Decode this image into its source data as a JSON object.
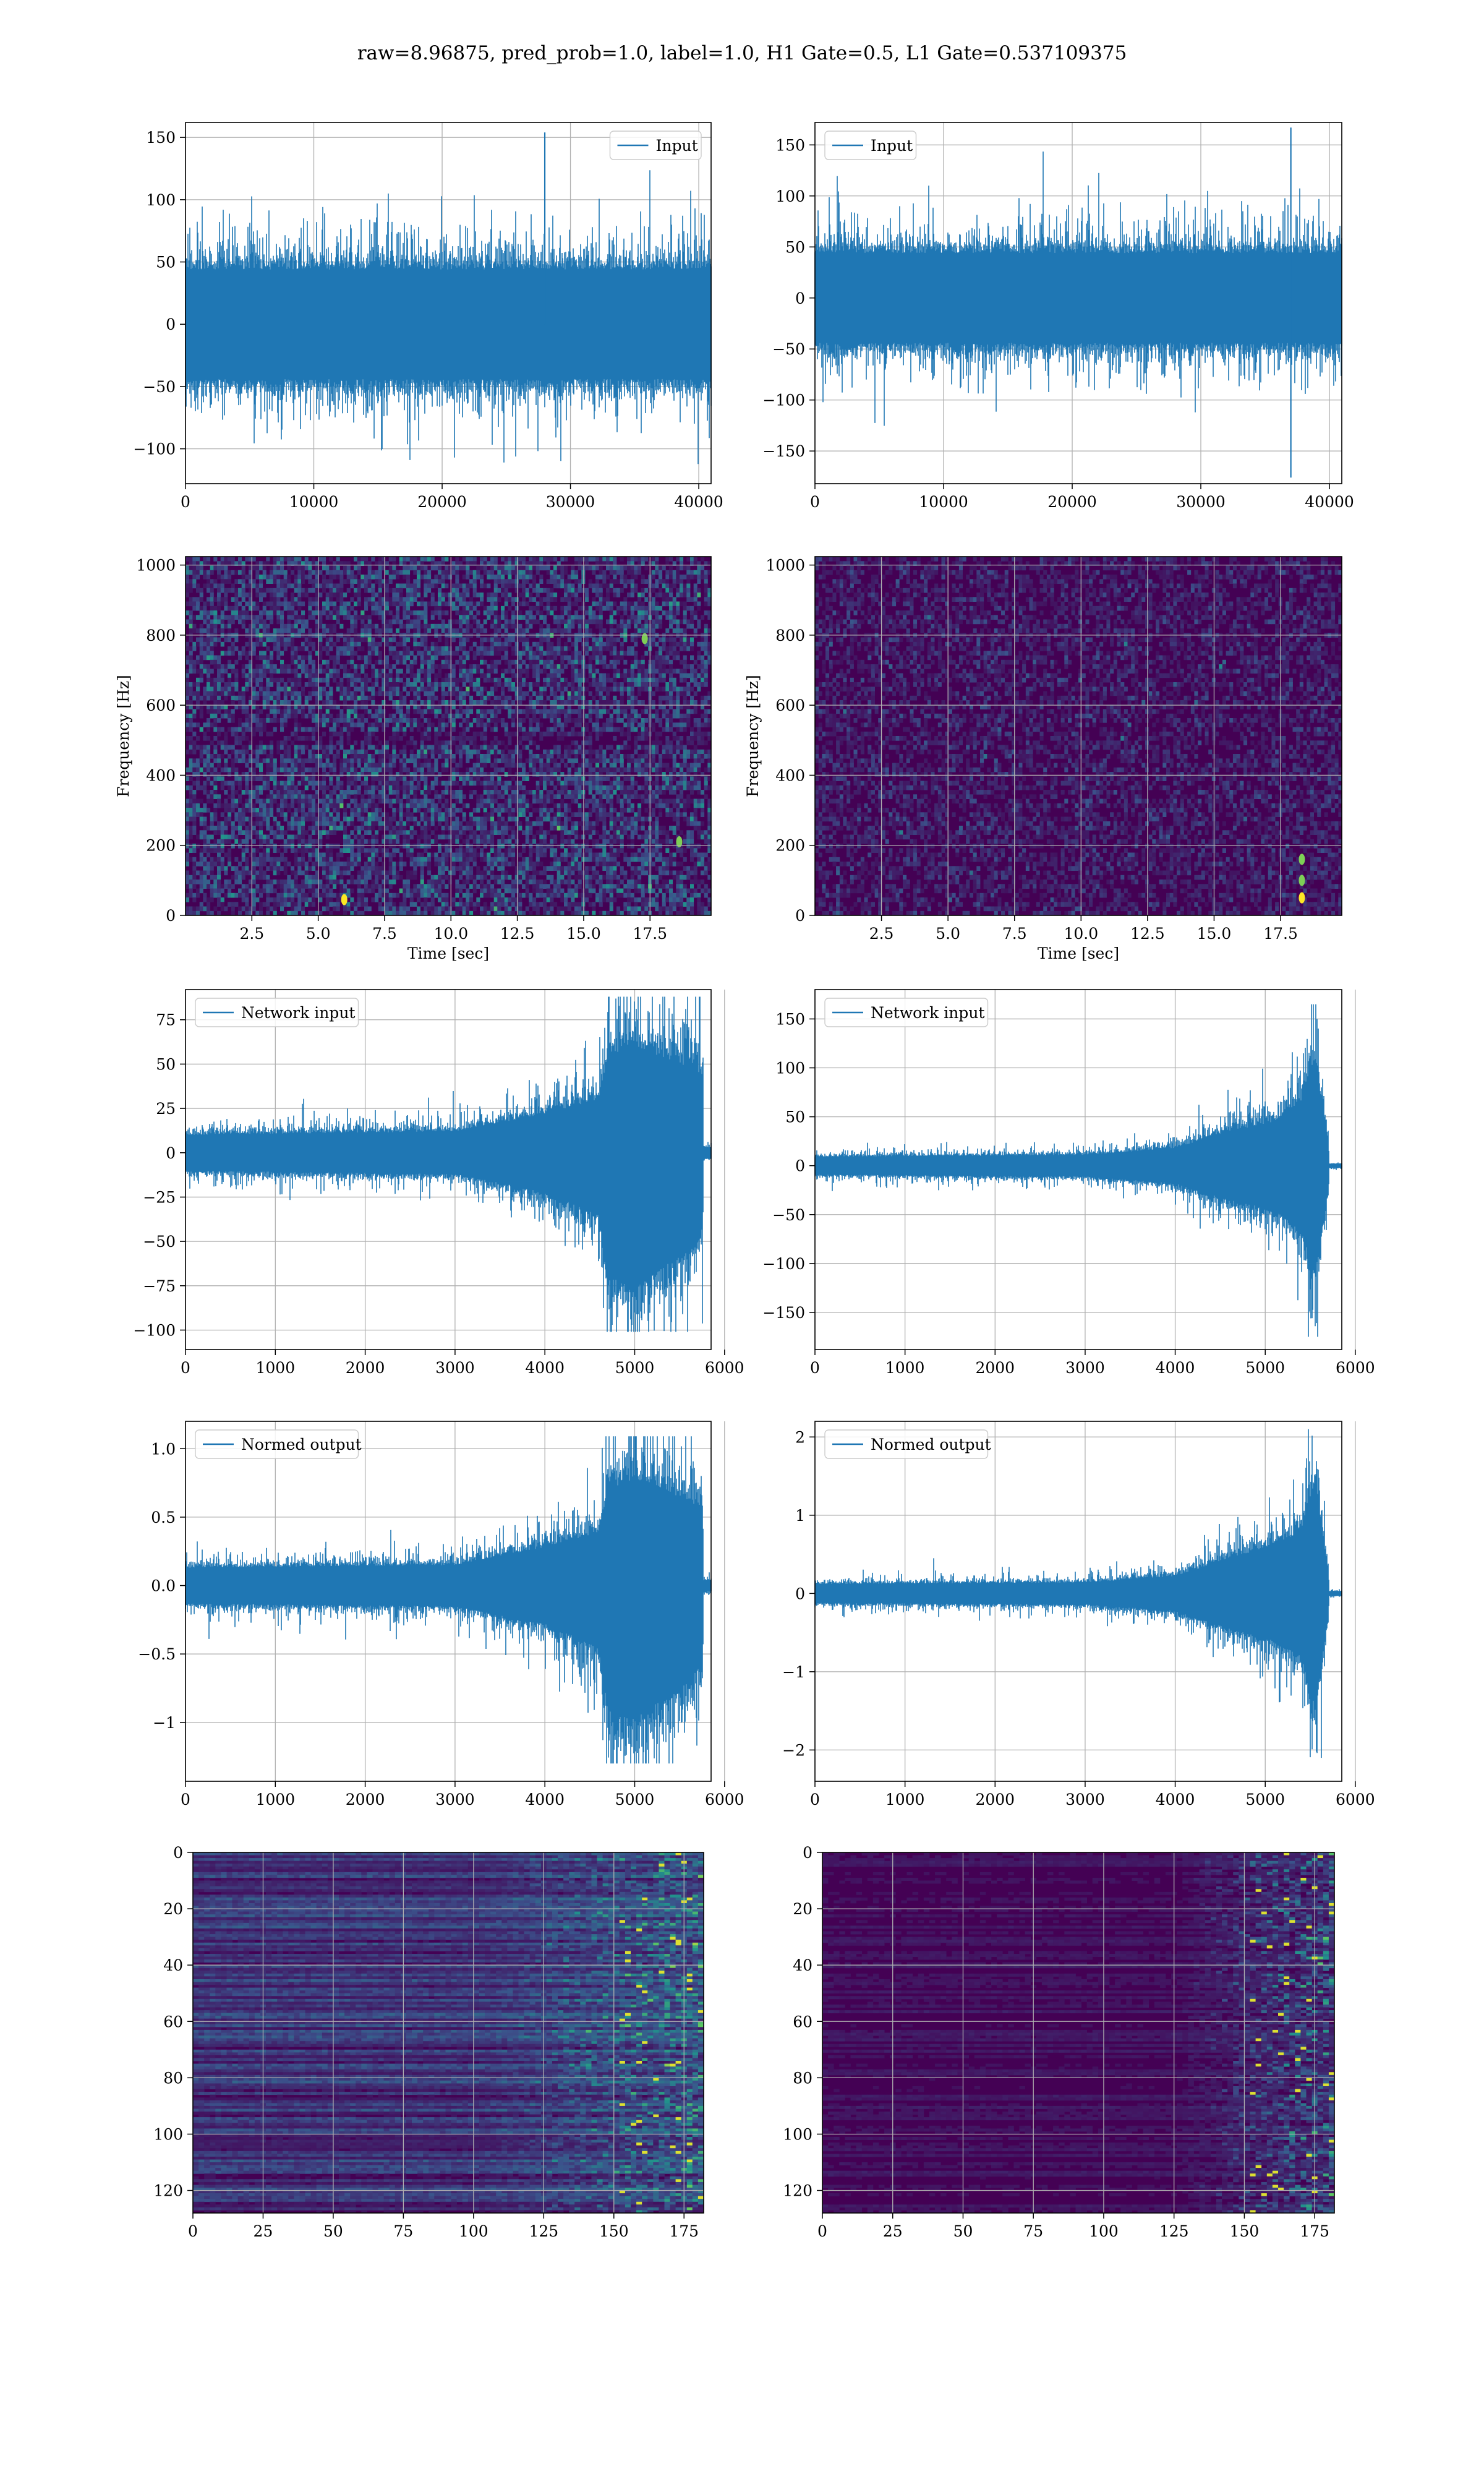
{
  "figure": {
    "title": "raw=8.96875, pred_prob=1.0, label=1.0, H1 Gate=0.5, L1 Gate=0.537109375",
    "line_color": "#1f77b4",
    "grid_color": "#b0b0b0"
  },
  "chart_data": [
    {
      "id": "h1-input",
      "type": "line",
      "series": [
        {
          "name": "Input"
        }
      ],
      "x_range": [
        0,
        40960
      ],
      "ylim": [
        -128,
        162
      ],
      "data_range": [
        -122,
        154
      ],
      "xticks": [
        0,
        10000,
        20000,
        30000,
        40000
      ],
      "yticks": [
        -100,
        -50,
        0,
        50,
        100,
        150
      ],
      "xlabel": "",
      "ylabel": "",
      "legend": "top-right",
      "grid": true,
      "peaks": [
        {
          "x": 28000,
          "y": 154
        }
      ],
      "envelope": [
        [
          0,
          44,
          -44
        ],
        [
          40960,
          44,
          -44
        ]
      ]
    },
    {
      "id": "l1-input",
      "type": "line",
      "series": [
        {
          "name": "Input"
        }
      ],
      "x_range": [
        0,
        40960
      ],
      "ylim": [
        -182,
        172
      ],
      "data_range": [
        -176,
        167
      ],
      "xticks": [
        0,
        10000,
        20000,
        30000,
        40000
      ],
      "yticks": [
        -150,
        -100,
        -50,
        0,
        50,
        100,
        150
      ],
      "xlabel": "",
      "ylabel": "",
      "legend": "top-left",
      "grid": true,
      "peaks": [
        {
          "x": 37000,
          "y": 167
        },
        {
          "x": 37000,
          "y": -176
        }
      ],
      "envelope": [
        [
          0,
          44,
          -44
        ],
        [
          40960,
          44,
          -44
        ]
      ]
    },
    {
      "id": "h1-spectrogram",
      "type": "heatmap",
      "x_range": [
        0,
        19.8
      ],
      "ylim": [
        0,
        1024
      ],
      "xticks": [
        2.5,
        5.0,
        7.5,
        10.0,
        12.5,
        15.0,
        17.5
      ],
      "yticks": [
        0,
        200,
        400,
        600,
        800,
        1000
      ],
      "xlabel": "Time [sec]",
      "ylabel": "Frequency [Hz]",
      "grid": true,
      "colormap": "viridis",
      "hot_spots": [
        {
          "x": 5.98,
          "y": 45
        },
        {
          "x": 18.6,
          "y": 210
        },
        {
          "x": 17.3,
          "y": 790
        }
      ]
    },
    {
      "id": "l1-spectrogram",
      "type": "heatmap",
      "x_range": [
        0,
        19.8
      ],
      "ylim": [
        0,
        1024
      ],
      "xticks": [
        2.5,
        5.0,
        7.5,
        10.0,
        12.5,
        15.0,
        17.5
      ],
      "yticks": [
        0,
        200,
        400,
        600,
        800,
        1000
      ],
      "xlabel": "Time [sec]",
      "ylabel": "Frequency [Hz]",
      "grid": true,
      "colormap": "viridis",
      "hot_spots": [
        {
          "x": 18.3,
          "y": 50
        },
        {
          "x": 18.3,
          "y": 100
        },
        {
          "x": 18.3,
          "y": 160
        }
      ]
    },
    {
      "id": "h1-network-input",
      "type": "line",
      "series": [
        {
          "name": "Network input"
        }
      ],
      "x_range": [
        0,
        5850
      ],
      "ylim": [
        -111,
        92
      ],
      "data_range": [
        -101,
        88
      ],
      "xticks": [
        0,
        1000,
        2000,
        3000,
        4000,
        5000,
        6000
      ],
      "yticks": [
        -100,
        -75,
        -50,
        -25,
        0,
        25,
        50,
        75
      ],
      "xlabel": "",
      "ylabel": "",
      "legend": "top-left",
      "grid": true,
      "envelope": [
        [
          0,
          10,
          -10
        ],
        [
          3000,
          12,
          -12
        ],
        [
          4000,
          22,
          -22
        ],
        [
          4600,
          30,
          -35
        ],
        [
          4700,
          55,
          -70
        ],
        [
          5000,
          60,
          -75
        ],
        [
          5600,
          48,
          -55
        ],
        [
          5760,
          42,
          -42
        ],
        [
          5762,
          3,
          -3
        ],
        [
          5850,
          3,
          -3
        ]
      ]
    },
    {
      "id": "l1-network-input",
      "type": "line",
      "series": [
        {
          "name": "Network input"
        }
      ],
      "x_range": [
        0,
        5850
      ],
      "ylim": [
        -188,
        180
      ],
      "data_range": [
        -175,
        165
      ],
      "xticks": [
        0,
        1000,
        2000,
        3000,
        4000,
        5000,
        6000
      ],
      "yticks": [
        -150,
        -100,
        -50,
        0,
        50,
        100,
        150
      ],
      "xlabel": "",
      "ylabel": "",
      "legend": "top-left",
      "grid": true,
      "envelope": [
        [
          0,
          9,
          -9
        ],
        [
          3000,
          11,
          -11
        ],
        [
          4000,
          18,
          -18
        ],
        [
          4600,
          35,
          -35
        ],
        [
          5100,
          45,
          -45
        ],
        [
          5400,
          65,
          -65
        ],
        [
          5550,
          110,
          -110
        ],
        [
          5700,
          25,
          -25
        ],
        [
          5710,
          2,
          -2
        ],
        [
          5850,
          2,
          -2
        ]
      ]
    },
    {
      "id": "h1-normed-output",
      "type": "line",
      "series": [
        {
          "name": "Normed output"
        }
      ],
      "x_range": [
        0,
        5850
      ],
      "ylim": [
        -1.43,
        1.2
      ],
      "data_range": [
        -1.3,
        1.09
      ],
      "xticks": [
        0,
        1000,
        2000,
        3000,
        4000,
        5000,
        6000
      ],
      "yticks": [
        -1.0,
        -0.5,
        0.0,
        0.5,
        1.0
      ],
      "xlabel": "",
      "ylabel": "",
      "legend": "top-left",
      "grid": true,
      "envelope": [
        [
          0,
          0.13,
          -0.13
        ],
        [
          3000,
          0.15,
          -0.15
        ],
        [
          4000,
          0.28,
          -0.28
        ],
        [
          4600,
          0.38,
          -0.45
        ],
        [
          4700,
          0.7,
          -0.9
        ],
        [
          5000,
          0.78,
          -0.95
        ],
        [
          5600,
          0.62,
          -0.7
        ],
        [
          5760,
          0.55,
          -0.55
        ],
        [
          5762,
          0.04,
          -0.04
        ],
        [
          5850,
          0.04,
          -0.04
        ]
      ]
    },
    {
      "id": "l1-normed-output",
      "type": "line",
      "series": [
        {
          "name": "Normed output"
        }
      ],
      "x_range": [
        0,
        5850
      ],
      "ylim": [
        -2.4,
        2.2
      ],
      "data_range": [
        -2.2,
        2.1
      ],
      "xticks": [
        0,
        1000,
        2000,
        3000,
        4000,
        5000,
        6000
      ],
      "yticks": [
        -2,
        -1,
        0,
        1,
        2
      ],
      "xlabel": "",
      "ylabel": "",
      "legend": "top-left",
      "grid": true,
      "envelope": [
        [
          0,
          0.12,
          -0.12
        ],
        [
          3000,
          0.14,
          -0.14
        ],
        [
          4000,
          0.22,
          -0.22
        ],
        [
          4600,
          0.45,
          -0.45
        ],
        [
          5100,
          0.6,
          -0.6
        ],
        [
          5400,
          0.8,
          -0.8
        ],
        [
          5550,
          1.4,
          -1.4
        ],
        [
          5700,
          0.3,
          -0.3
        ],
        [
          5710,
          0.03,
          -0.03
        ],
        [
          5850,
          0.03,
          -0.03
        ]
      ]
    },
    {
      "id": "h1-feature-map",
      "type": "heatmap",
      "x_range": [
        0,
        182
      ],
      "ylim": [
        128,
        0
      ],
      "xticks": [
        0,
        25,
        50,
        75,
        100,
        125,
        150,
        175
      ],
      "yticks": [
        0,
        20,
        40,
        60,
        80,
        100,
        120
      ],
      "xlabel": "",
      "ylabel": "",
      "grid": true,
      "colormap": "viridis",
      "activity_onset": 100,
      "base_level": 0.15
    },
    {
      "id": "l1-feature-map",
      "type": "heatmap",
      "x_range": [
        0,
        182
      ],
      "ylim": [
        128,
        0
      ],
      "xticks": [
        0,
        25,
        50,
        75,
        100,
        125,
        150,
        175
      ],
      "yticks": [
        0,
        20,
        40,
        60,
        80,
        100,
        120
      ],
      "xlabel": "",
      "ylabel": "",
      "grid": true,
      "colormap": "viridis",
      "activity_onset": 125,
      "base_level": 0.05
    }
  ]
}
